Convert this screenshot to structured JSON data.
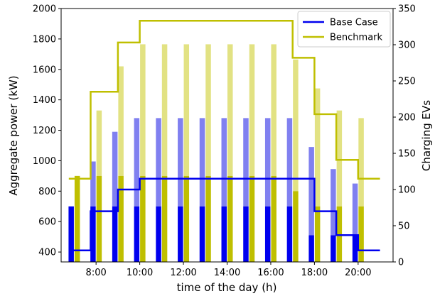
{
  "chart_data": {
    "type": "bar+line",
    "xlabel": "time of the day (h)",
    "ylabel_left": "Aggregate power (kW)",
    "ylabel_right": "Charging EVs",
    "ylim_left": [
      335,
      2000
    ],
    "ylim_right": [
      0,
      350
    ],
    "xlim": [
      6.4,
      21.6
    ],
    "xticks": [
      8,
      10,
      12,
      14,
      16,
      18,
      20
    ],
    "xtick_labels": [
      "8:00",
      "10:00",
      "12:00",
      "14:00",
      "16:00",
      "18:00",
      "20:00"
    ],
    "yticks_left": [
      400,
      600,
      800,
      1000,
      1200,
      1400,
      1600,
      1800,
      2000
    ],
    "yticks_right": [
      0,
      50,
      100,
      150,
      200,
      250,
      300,
      350
    ],
    "legend_position": "top-right",
    "legend": [
      "Base Case",
      "Benchmark"
    ],
    "colors": {
      "base": "#0000ee",
      "base_light": "#8080f0",
      "bench": "#bfbf00",
      "bench_light": "#e2e283"
    },
    "hours": [
      7,
      8,
      9,
      10,
      11,
      12,
      13,
      14,
      15,
      16,
      17,
      18,
      19,
      20
    ],
    "base_case_power_solid": [
      700,
      700,
      700,
      700,
      700,
      700,
      700,
      700,
      700,
      700,
      700,
      510,
      510,
      510
    ],
    "base_case_power_light": [
      0,
      995,
      1190,
      1280,
      1280,
      1280,
      1280,
      1280,
      1280,
      1280,
      1280,
      1090,
      945,
      850
    ],
    "benchmark_power_solid": [
      900,
      900,
      900,
      900,
      900,
      900,
      900,
      900,
      900,
      900,
      800,
      700,
      700,
      700
    ],
    "benchmark_power_light": [
      900,
      1330,
      1620,
      1765,
      1765,
      1765,
      1765,
      1765,
      1765,
      1765,
      1665,
      1475,
      1330,
      1280
    ],
    "base_case_evs": {
      "x": [
        6.75,
        7.75,
        7.75,
        9.0,
        9.0,
        10.0,
        10.0,
        18.0,
        18.0,
        19.0,
        19.0,
        20.0,
        20.0,
        21.0
      ],
      "y": [
        16,
        16,
        70,
        70,
        100,
        100,
        115,
        115,
        70,
        70,
        37,
        37,
        16,
        16
      ]
    },
    "benchmark_evs": {
      "x": [
        6.75,
        7.75,
        7.75,
        9.0,
        9.0,
        10.0,
        10.0,
        17.0,
        17.0,
        18.0,
        18.0,
        19.0,
        19.0,
        20.0,
        20.0,
        21.0
      ],
      "y": [
        115,
        115,
        235,
        235,
        303,
        303,
        333,
        333,
        282,
        282,
        204,
        204,
        141,
        141,
        115,
        115
      ]
    }
  }
}
